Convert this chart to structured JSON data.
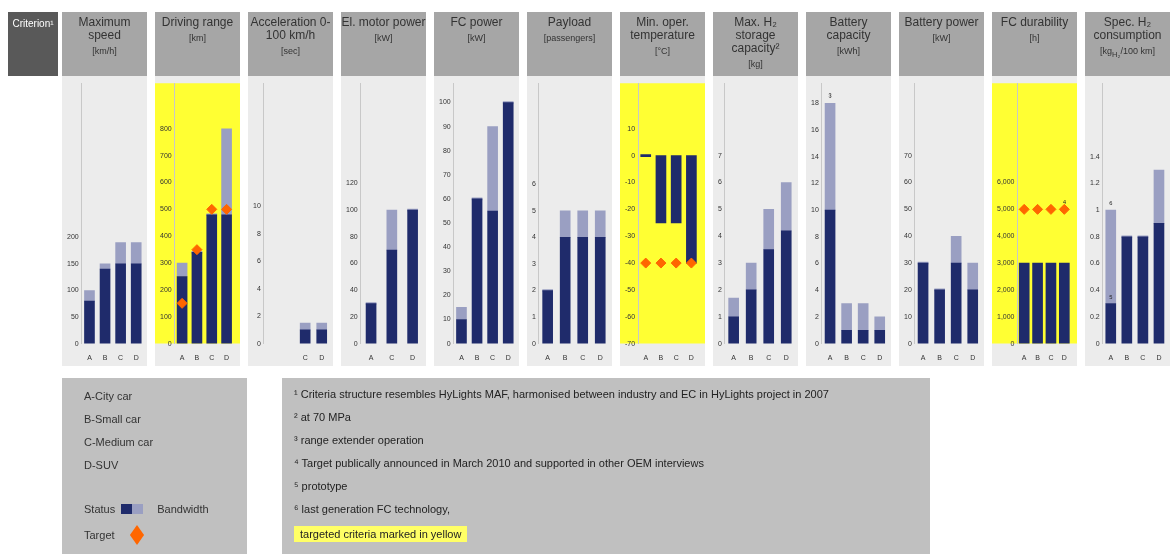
{
  "chart_data": [
    {
      "type": "other",
      "title": "Criterion¹"
    },
    {
      "type": "bar",
      "title": "Maximum speed",
      "subtitle": "[km/h]",
      "categories": [
        "A",
        "B",
        "C",
        "D"
      ],
      "stacked": true,
      "ylim": [
        0,
        490
      ],
      "yticks": [
        0,
        50,
        100,
        150,
        200
      ],
      "series": [
        {
          "type": "bar",
          "color": "#1f2b6b",
          "values": [
            80,
            140,
            150,
            150
          ]
        },
        {
          "type": "bar",
          "color": "#9a9fc2",
          "values": [
            20,
            10,
            40,
            40
          ]
        }
      ]
    },
    {
      "type": "bar",
      "title": "Driving range",
      "subtitle": "[km]",
      "categories": [
        "A",
        "B",
        "C",
        "D"
      ],
      "stacked": true,
      "ylim": [
        0,
        970
      ],
      "yticks": [
        0,
        100,
        200,
        300,
        400,
        500,
        600,
        700,
        800
      ],
      "bands": [
        {
          "axis": "y",
          "from": 0,
          "to": 970,
          "color": "#ffff33"
        }
      ],
      "series": [
        {
          "type": "bar",
          "color": "#1f2b6b",
          "values": [
            250,
            340,
            480,
            480
          ]
        },
        {
          "type": "bar",
          "color": "#9a9fc2",
          "values": [
            50,
            0,
            0,
            320
          ]
        },
        {
          "type": "scatter",
          "color": "#ff6600",
          "marker": "diamond",
          "x": [
            "A",
            "B",
            "C",
            "D"
          ],
          "values": [
            150,
            350,
            500,
            500
          ]
        }
      ]
    },
    {
      "type": "bar",
      "title": "Acceleration 0-100 km/h",
      "subtitle": "[sec]",
      "categories": [
        null,
        null,
        "C",
        "D"
      ],
      "stacked": true,
      "ylim": [
        0,
        19
      ],
      "yticks": [
        0,
        2,
        4,
        6,
        8,
        10
      ],
      "series": [
        {
          "type": "bar",
          "color": "#1f2b6b",
          "values": [
            null,
            null,
            1,
            1
          ]
        },
        {
          "type": "bar",
          "color": "#9a9fc2",
          "values": [
            null,
            null,
            0.5,
            0.5
          ]
        }
      ]
    },
    {
      "type": "bar",
      "title": "El. motor power",
      "subtitle": "[kW]",
      "categories": [
        "A",
        "C",
        "D"
      ],
      "stacked": true,
      "ylim": [
        0,
        195
      ],
      "yticks": [
        0,
        20,
        40,
        60,
        80,
        100,
        120
      ],
      "series": [
        {
          "type": "bar",
          "color": "#1f2b6b",
          "values": [
            30,
            70,
            100
          ]
        },
        {
          "type": "bar",
          "color": "#9a9fc2",
          "values": [
            0,
            30,
            0
          ]
        }
      ]
    },
    {
      "type": "bar",
      "title": "FC power",
      "subtitle": "[kW]",
      "categories": [
        "A",
        "B",
        "C",
        "D"
      ],
      "stacked": true,
      "ylim": [
        0,
        108
      ],
      "yticks": [
        0,
        10,
        20,
        30,
        40,
        50,
        60,
        70,
        80,
        90,
        100
      ],
      "series": [
        {
          "type": "bar",
          "color": "#1f2b6b",
          "values": [
            10,
            60,
            55,
            100
          ]
        },
        {
          "type": "bar",
          "color": "#9a9fc2",
          "values": [
            5,
            0,
            35,
            0
          ]
        }
      ]
    },
    {
      "type": "bar",
      "title": "Payload",
      "subtitle": "[passengers]",
      "categories": [
        "A",
        "B",
        "C",
        "D"
      ],
      "stacked": true,
      "ylim": [
        0,
        9.8
      ],
      "yticks": [
        0,
        1,
        2,
        3,
        4,
        5,
        6
      ],
      "series": [
        {
          "type": "bar",
          "color": "#1f2b6b",
          "values": [
            2,
            4,
            4,
            4
          ]
        },
        {
          "type": "bar",
          "color": "#9a9fc2",
          "values": [
            0,
            1,
            1,
            1
          ]
        }
      ]
    },
    {
      "type": "bar",
      "title": "Min. oper. temperature",
      "subtitle": "[°C]",
      "categories": [
        "A",
        "B",
        "C",
        "D"
      ],
      "stacked": true,
      "ylim": [
        -70,
        27
      ],
      "yticks": [
        -70,
        -60,
        -50,
        -40,
        -30,
        -20,
        -10,
        0,
        10
      ],
      "bands": [
        {
          "axis": "y",
          "from": -70,
          "to": 27,
          "color": "#ffff33"
        }
      ],
      "series": [
        {
          "type": "bar",
          "color": "#1f2b6b",
          "values": [
            0,
            -25,
            -25,
            -40
          ]
        },
        {
          "type": "scatter",
          "color": "#ff6600",
          "marker": "diamond",
          "x": [
            "A",
            "B",
            "C",
            "D"
          ],
          "values": [
            -40,
            -40,
            -40,
            -40
          ]
        }
      ]
    },
    {
      "type": "bar",
      "title": "Max. H₂ storage capacity²",
      "subtitle": "[kg]",
      "categories": [
        "A",
        "B",
        "C",
        "D"
      ],
      "stacked": true,
      "ylim": [
        0,
        9.7
      ],
      "yticks": [
        0,
        1,
        2,
        3,
        4,
        5,
        6,
        7
      ],
      "series": [
        {
          "type": "bar",
          "color": "#1f2b6b",
          "values": [
            1,
            2,
            3.5,
            4.2
          ]
        },
        {
          "type": "bar",
          "color": "#9a9fc2",
          "values": [
            0.7,
            1,
            1.5,
            1.8
          ]
        }
      ]
    },
    {
      "type": "bar",
      "title": "Battery capacity",
      "subtitle": "[kWh]",
      "categories": [
        "A",
        "B",
        "C",
        "D"
      ],
      "stacked": true,
      "ylim": [
        0,
        19.5
      ],
      "yticks": [
        0,
        2,
        4,
        6,
        8,
        10,
        12,
        14,
        16,
        18
      ],
      "annotations": [
        {
          "text": "³",
          "x": "A",
          "y": 18
        }
      ],
      "series": [
        {
          "type": "bar",
          "color": "#1f2b6b",
          "values": [
            10,
            1,
            1,
            1
          ]
        },
        {
          "type": "bar",
          "color": "#9a9fc2",
          "values": [
            8,
            2,
            2,
            1
          ]
        }
      ]
    },
    {
      "type": "bar",
      "title": "Battery power",
      "subtitle": "[kW]",
      "categories": [
        "A",
        "B",
        "C",
        "D"
      ],
      "stacked": true,
      "ylim": [
        0,
        97
      ],
      "yticks": [
        0,
        10,
        20,
        30,
        40,
        50,
        60,
        70
      ],
      "series": [
        {
          "type": "bar",
          "color": "#1f2b6b",
          "values": [
            30,
            20,
            30,
            20
          ]
        },
        {
          "type": "bar",
          "color": "#9a9fc2",
          "values": [
            0,
            0,
            10,
            10
          ]
        }
      ]
    },
    {
      "type": "bar",
      "title": "FC durability",
      "subtitle": "[h]",
      "categories": [
        "A",
        "B",
        "C",
        "D"
      ],
      "stacked": true,
      "ylim": [
        0,
        9700
      ],
      "yticks": [
        0,
        {
          "value": 1000,
          "label": "1,000"
        },
        {
          "value": 2000,
          "label": "2,000"
        },
        {
          "value": 3000,
          "label": "3,000"
        },
        {
          "value": 4000,
          "label": "4,000"
        },
        {
          "value": 5000,
          "label": "5,000"
        },
        {
          "value": 6000,
          "label": "6,000"
        }
      ],
      "bands": [
        {
          "axis": "y",
          "from": 0,
          "to": 9700,
          "color": "#ffff33"
        }
      ],
      "annotations": [
        {
          "text": "⁴",
          "x": "D",
          "y": 5000
        }
      ],
      "series": [
        {
          "type": "bar",
          "color": "#1f2b6b",
          "values": [
            3000,
            3000,
            3000,
            3000
          ]
        },
        {
          "type": "scatter",
          "color": "#ff6600",
          "marker": "diamond",
          "x": [
            "A",
            "B",
            "C",
            "D"
          ],
          "values": [
            5000,
            5000,
            5000,
            5000
          ]
        }
      ]
    },
    {
      "type": "bar",
      "title": "Spec. H₂ consumption",
      "subtitle": "[kg$_{H₂}$/100 km]",
      "categories": [
        "A",
        "B",
        "C",
        "D"
      ],
      "stacked": true,
      "ylim": [
        0,
        1.95
      ],
      "yticks": [
        0,
        0.2,
        0.4,
        0.6,
        0.8,
        1,
        1.2,
        1.4
      ],
      "annotations": [
        {
          "text": "⁶",
          "x": "A",
          "y": 1
        },
        {
          "text": "⁵",
          "x": "A",
          "y": 0.3
        }
      ],
      "series": [
        {
          "type": "bar",
          "color": "#1f2b6b",
          "values": [
            0.3,
            0.8,
            0.8,
            0.9
          ]
        },
        {
          "type": "bar",
          "color": "#9a9fc2",
          "values": [
            0.7,
            0,
            0,
            0.4
          ]
        }
      ]
    },
    {
      "type": "other",
      "annotations": [
        "A-City car",
        "B-Small car",
        "C-Medium car",
        "D-SUV",
        "Status",
        "Bandwidth",
        "Target"
      ]
    },
    {
      "type": "other",
      "annotations": [
        "¹ Criteria structure resembles HyLights MAF, harmonised between industry and EC in HyLights project in 2007",
        "² at 70 MPa",
        "³ range extender operation",
        "⁴ Target publically announced in March 2010 and supported in other OEM interviews",
        "⁵ prototype",
        "⁶ last generation FC technology,",
        "targeted criteria marked in yellow"
      ]
    }
  ]
}
